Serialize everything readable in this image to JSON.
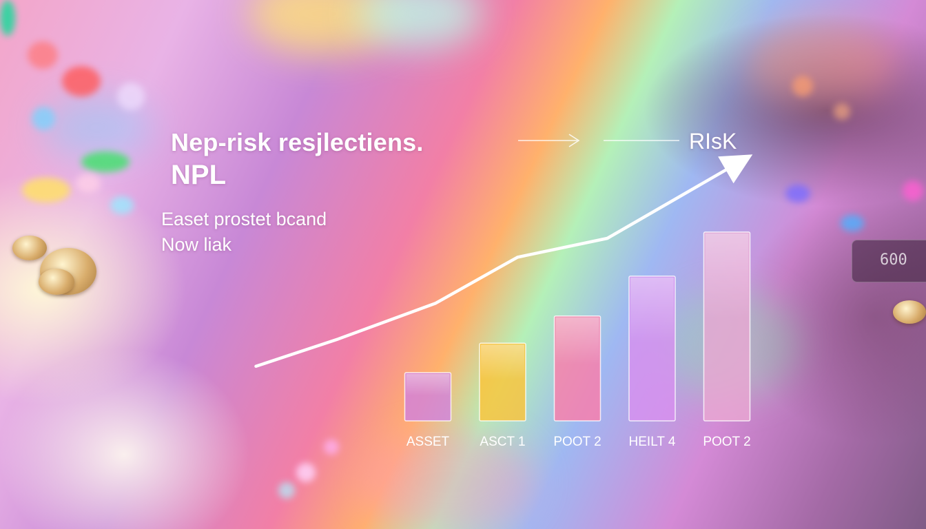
{
  "chart_data": {
    "type": "bar",
    "title": "Nep-risk resjlectiens.",
    "subtitle": "NPL",
    "annotation_lines": [
      "Easet prostet bcand",
      "Now liak"
    ],
    "trend_label": "RIsK",
    "categories": [
      "ASSET",
      "ASCT 1",
      "POOT 2",
      "HEILT 4",
      "POOT 2"
    ],
    "series": [
      {
        "values": [
          23,
          37,
          50,
          69,
          90
        ]
      }
    ],
    "trend_line": {
      "x": [
        -2.3,
        -1.2,
        0.1,
        1.2,
        2.4,
        4.2
      ],
      "y": [
        26,
        39,
        56,
        78,
        87,
        124
      ]
    },
    "ylim": [
      0,
      130
    ],
    "grid": false,
    "colors": {
      "bars": [
        "#cf7fe0",
        "#ffc233",
        "#ff7aa6",
        "#d890f0",
        "#eaa8d2"
      ],
      "text": "#ffffff",
      "trend": "#ffffff"
    }
  }
}
